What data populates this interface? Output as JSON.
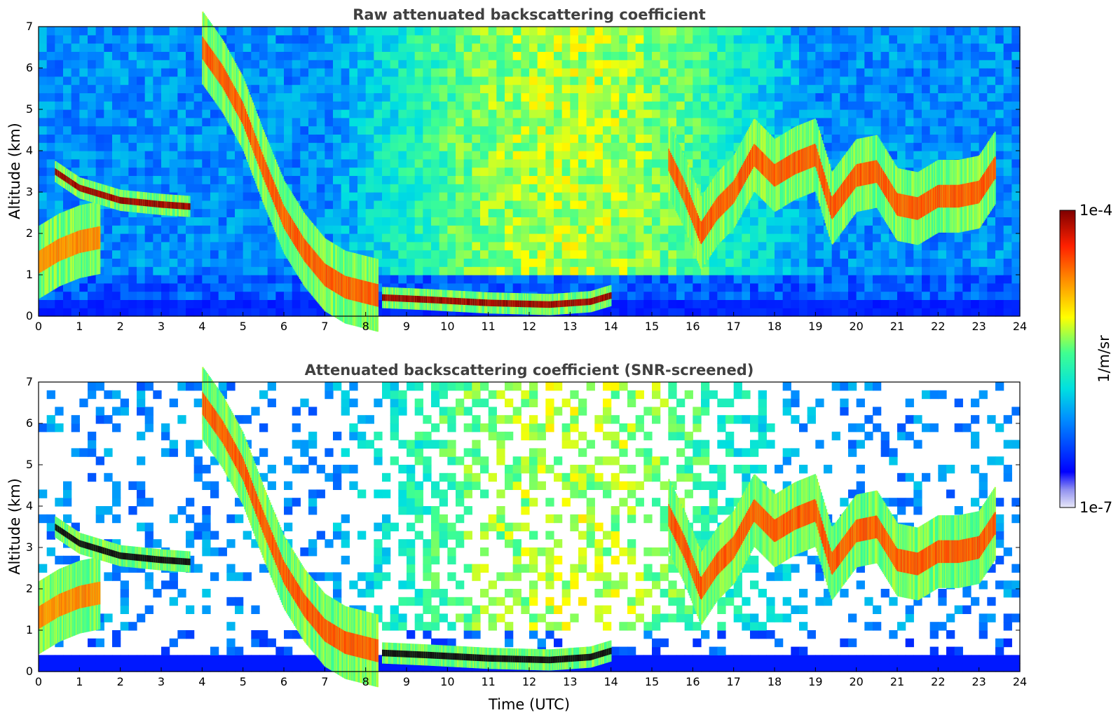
{
  "chart_data": [
    {
      "type": "heatmap",
      "title": "Raw attenuated backscattering coefficient",
      "xlabel": "",
      "ylabel": "Altitude (km)",
      "xlim": [
        0,
        24
      ],
      "ylim": [
        0,
        7
      ],
      "x_ticks": [
        "0",
        "1",
        "2",
        "3",
        "4",
        "5",
        "6",
        "7",
        "8",
        "9",
        "10",
        "11",
        "12",
        "13",
        "14",
        "15",
        "16",
        "17",
        "18",
        "19",
        "20",
        "21",
        "22",
        "23",
        "24"
      ],
      "y_ticks": [
        "0",
        "1",
        "2",
        "3",
        "4",
        "5",
        "6",
        "7"
      ],
      "features": [
        {
          "kind": "layer",
          "desc": "boundary layer",
          "points": [
            [
              0,
              1.3
            ],
            [
              0.5,
              1.6
            ],
            [
              1.0,
              1.8
            ],
            [
              1.5,
              1.9
            ]
          ],
          "level": 0.8
        },
        {
          "kind": "layer",
          "desc": "cloud",
          "points": [
            [
              0.4,
              3.5
            ],
            [
              1.0,
              3.1
            ],
            [
              1.5,
              2.95
            ],
            [
              2.0,
              2.8
            ],
            [
              3.0,
              2.7
            ],
            [
              3.7,
              2.65
            ]
          ],
          "level": 1.0
        },
        {
          "kind": "layer",
          "desc": "descending aerosol",
          "points": [
            [
              4.0,
              6.5
            ],
            [
              4.5,
              5.8
            ],
            [
              5.0,
              4.9
            ],
            [
              5.5,
              3.6
            ],
            [
              6.0,
              2.4
            ],
            [
              6.5,
              1.6
            ],
            [
              7.0,
              1.0
            ],
            [
              7.5,
              0.7
            ],
            [
              8.3,
              0.5
            ]
          ],
          "level": 0.85
        },
        {
          "kind": "layer",
          "desc": "low cloud",
          "points": [
            [
              8.4,
              0.45
            ],
            [
              9.5,
              0.4
            ],
            [
              11,
              0.32
            ],
            [
              12.5,
              0.28
            ],
            [
              13.5,
              0.35
            ],
            [
              14.0,
              0.5
            ]
          ],
          "level": 1.0
        },
        {
          "kind": "layer",
          "desc": "cloud",
          "points": [
            [
              15.4,
              3.8
            ],
            [
              15.8,
              3.0
            ],
            [
              16.2,
              2.0
            ],
            [
              16.6,
              2.6
            ],
            [
              17.0,
              3.0
            ],
            [
              17.5,
              3.9
            ],
            [
              18.0,
              3.4
            ],
            [
              18.5,
              3.7
            ],
            [
              19.0,
              3.9
            ],
            [
              19.4,
              2.6
            ],
            [
              20.0,
              3.4
            ],
            [
              20.5,
              3.5
            ],
            [
              21.0,
              2.7
            ],
            [
              21.5,
              2.6
            ],
            [
              22.0,
              2.9
            ],
            [
              22.5,
              2.9
            ],
            [
              23.0,
              3.0
            ],
            [
              23.4,
              3.6
            ]
          ],
          "level": 0.85
        }
      ]
    },
    {
      "type": "heatmap",
      "title": "Attenuated backscattering coefficient (SNR-screened)",
      "xlabel": "Time (UTC)",
      "ylabel": "Altitude (km)",
      "xlim": [
        0,
        24
      ],
      "ylim": [
        0,
        7
      ],
      "x_ticks": [
        "0",
        "1",
        "2",
        "3",
        "4",
        "5",
        "6",
        "7",
        "8",
        "9",
        "10",
        "11",
        "12",
        "13",
        "14",
        "15",
        "16",
        "17",
        "18",
        "19",
        "20",
        "21",
        "22",
        "23",
        "24"
      ],
      "y_ticks": [
        "0",
        "1",
        "2",
        "3",
        "4",
        "5",
        "6",
        "7"
      ],
      "features": [
        {
          "kind": "layer",
          "desc": "boundary layer",
          "points": [
            [
              0,
              1.3
            ],
            [
              0.5,
              1.6
            ],
            [
              1.0,
              1.8
            ],
            [
              1.5,
              1.9
            ]
          ],
          "level": 0.8
        },
        {
          "kind": "layer",
          "desc": "cloud",
          "points": [
            [
              0.4,
              3.5
            ],
            [
              1.0,
              3.1
            ],
            [
              1.5,
              2.95
            ],
            [
              2.0,
              2.8
            ],
            [
              3.0,
              2.7
            ],
            [
              3.7,
              2.65
            ]
          ],
          "level": 1.0
        },
        {
          "kind": "layer",
          "desc": "descending aerosol",
          "points": [
            [
              4.0,
              6.5
            ],
            [
              4.5,
              5.8
            ],
            [
              5.0,
              4.9
            ],
            [
              5.5,
              3.6
            ],
            [
              6.0,
              2.4
            ],
            [
              6.5,
              1.6
            ],
            [
              7.0,
              1.0
            ],
            [
              7.5,
              0.7
            ],
            [
              8.3,
              0.5
            ]
          ],
          "level": 0.85
        },
        {
          "kind": "layer",
          "desc": "low cloud",
          "points": [
            [
              8.4,
              0.45
            ],
            [
              9.5,
              0.4
            ],
            [
              11,
              0.32
            ],
            [
              12.5,
              0.28
            ],
            [
              13.5,
              0.35
            ],
            [
              14.0,
              0.5
            ]
          ],
          "level": 1.0
        },
        {
          "kind": "layer",
          "desc": "cloud",
          "points": [
            [
              15.4,
              3.8
            ],
            [
              15.8,
              3.0
            ],
            [
              16.2,
              2.0
            ],
            [
              16.6,
              2.6
            ],
            [
              17.0,
              3.0
            ],
            [
              17.5,
              3.9
            ],
            [
              18.0,
              3.4
            ],
            [
              18.5,
              3.7
            ],
            [
              19.0,
              3.9
            ],
            [
              19.4,
              2.6
            ],
            [
              20.0,
              3.4
            ],
            [
              20.5,
              3.5
            ],
            [
              21.0,
              2.7
            ],
            [
              21.5,
              2.6
            ],
            [
              22.0,
              2.9
            ],
            [
              22.5,
              2.9
            ],
            [
              23.0,
              3.0
            ],
            [
              23.4,
              3.6
            ]
          ],
          "level": 0.85
        }
      ]
    }
  ],
  "colorbar": {
    "label": "1/m/sr",
    "max_label": "1e-4",
    "min_label": "1e-7",
    "colormap": "jet",
    "colors": [
      "#e8e8f8",
      "#0000ff",
      "#00c8ff",
      "#00ffa0",
      "#ffff00",
      "#ff8000",
      "#ff2000",
      "#7f0000"
    ]
  }
}
